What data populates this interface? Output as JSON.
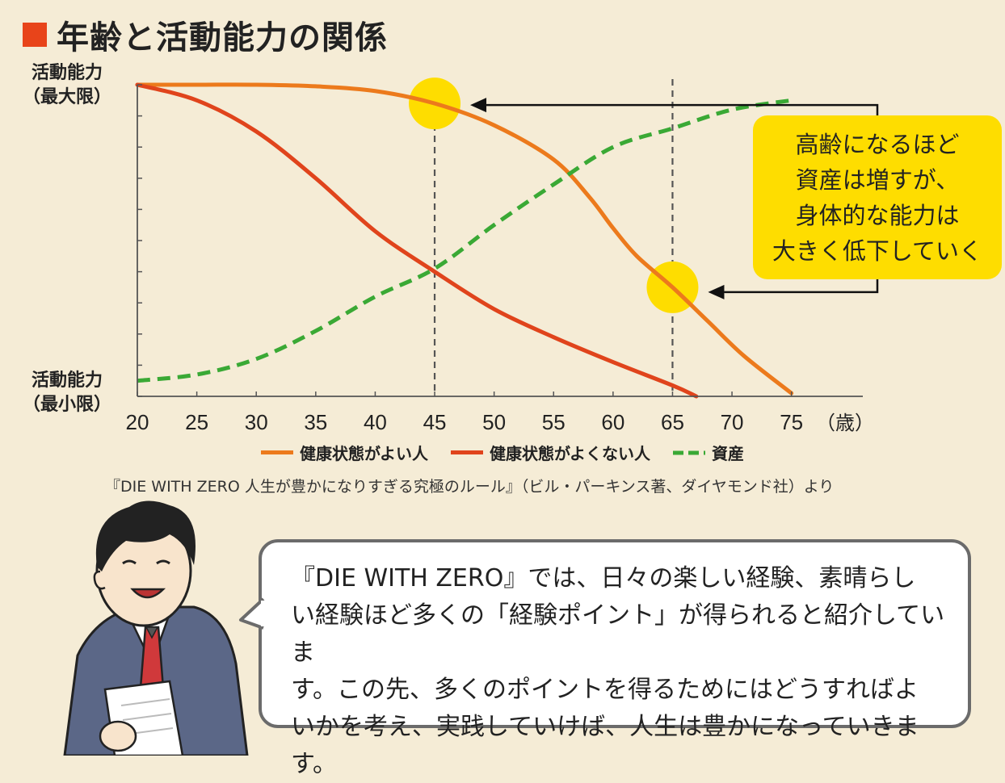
{
  "header": {
    "title": "年齢と活動能力の関係"
  },
  "y_axis": {
    "top_label_line1": "活動能力",
    "top_label_line2": "（最大限）",
    "bottom_label_line1": "活動能力",
    "bottom_label_line2": "（最小限）"
  },
  "x_unit": "（歳）",
  "callout": {
    "line1": "高齢になるほど",
    "line2": "資産は増すが、",
    "line3": "身体的な能力は",
    "line4": "大きく低下していく"
  },
  "legend": {
    "healthy": "健康状態がよい人",
    "unhealthy": "健康状態がよくない人",
    "assets": "資産"
  },
  "source": "『DIE WITH ZERO 人生が豊かになりすぎる究極のルール』（ビル・パーキンス著、ダイヤモンド社）より",
  "speech": {
    "line1": "『DIE WITH ZERO』では、日々の楽しい経験、素晴らし",
    "line2": "い経験ほど多くの「経験ポイント」が得られると紹介していま",
    "line3": "す。この先、多くのポイントを得るためにはどうすればよ",
    "line4": "いかを考え、実践していけば、人生は豊かになっていきます。"
  },
  "chart_data": {
    "type": "line",
    "title": "年齢と活動能力の関係",
    "xlabel": "（歳）",
    "ylabel": "活動能力",
    "xlim": [
      20,
      81
    ],
    "ylim": [
      0,
      100
    ],
    "x_ticks": [
      20,
      25,
      30,
      35,
      40,
      45,
      50,
      55,
      60,
      65,
      70,
      75
    ],
    "y_top_label": "活動能力（最大限）",
    "y_bottom_label": "活動能力（最小限）",
    "grid": false,
    "reference_lines_x": [
      45,
      65
    ],
    "highlight_points": [
      {
        "x": 45,
        "y": 94,
        "series": "健康状態がよい人"
      },
      {
        "x": 65,
        "y": 35,
        "series": "健康状態がよい人"
      }
    ],
    "series": [
      {
        "name": "健康状態がよい人",
        "color": "#ec7a1c",
        "style": "solid",
        "points": [
          [
            20,
            100
          ],
          [
            25,
            100
          ],
          [
            30,
            100
          ],
          [
            35,
            99.5
          ],
          [
            40,
            98
          ],
          [
            45,
            94
          ],
          [
            50,
            87
          ],
          [
            55,
            76
          ],
          [
            58,
            64
          ],
          [
            60,
            54
          ],
          [
            62,
            45
          ],
          [
            65,
            35
          ],
          [
            68,
            24
          ],
          [
            71,
            13
          ],
          [
            75,
            1
          ]
        ]
      },
      {
        "name": "健康状態がよくない人",
        "color": "#e0441c",
        "style": "solid",
        "points": [
          [
            20,
            100
          ],
          [
            25,
            95
          ],
          [
            30,
            85
          ],
          [
            35,
            70
          ],
          [
            40,
            53
          ],
          [
            45,
            40
          ],
          [
            50,
            28
          ],
          [
            55,
            19
          ],
          [
            60,
            11
          ],
          [
            65,
            3.5
          ],
          [
            67,
            0
          ]
        ]
      },
      {
        "name": "資産",
        "color": "#3aa935",
        "style": "dashed",
        "points": [
          [
            20,
            5
          ],
          [
            25,
            7
          ],
          [
            30,
            12
          ],
          [
            35,
            21
          ],
          [
            40,
            32
          ],
          [
            45,
            41
          ],
          [
            50,
            55
          ],
          [
            55,
            68
          ],
          [
            60,
            80
          ],
          [
            65,
            86
          ],
          [
            70,
            92
          ],
          [
            75,
            95
          ]
        ]
      }
    ]
  },
  "colors": {
    "background": "#f5ecd6",
    "title_square": "#e8441a",
    "highlight": "#fedd00",
    "healthy": "#ec7a1c",
    "unhealthy": "#e0441c",
    "assets": "#3aa935"
  }
}
